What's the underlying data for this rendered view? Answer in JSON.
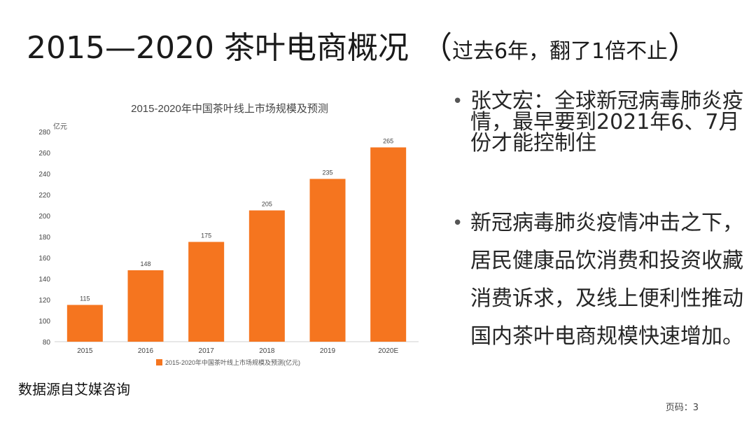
{
  "slide": {
    "title": "2015—2020 茶叶电商概况",
    "title_paren_open": "（",
    "title_sub": "过去6年，翻了1倍不止",
    "title_paren_close": "）",
    "bullets": [
      "张文宏：全球新冠病毒肺炎疫情，最早要到2021年6、7月份才能控制住",
      "新冠病毒肺炎疫情冲击之下，居民健康品饮消费和投资收藏消费诉求，及线上便利性推动国内茶叶电商规模快速增加。"
    ],
    "bullet_glyph": "•",
    "source": "数据源自艾媒咨询",
    "page_label": "页码：3"
  },
  "chart_data": {
    "type": "bar",
    "title": "2015-2020年中国茶叶线上市场规模及预测",
    "ylabel": "亿元",
    "categories": [
      "2015",
      "2016",
      "2017",
      "2018",
      "2019",
      "2020E"
    ],
    "series": [
      {
        "name": "2015-2020年中国茶叶线上市场规模及预测(亿元)",
        "values": [
          115,
          148,
          175,
          205,
          235,
          265
        ]
      }
    ],
    "ylim": [
      80,
      280
    ],
    "yticks": [
      80,
      100,
      120,
      140,
      160,
      180,
      200,
      220,
      240,
      260,
      280
    ],
    "grid": false,
    "legend": "bottom",
    "bar_color": "#f5751f"
  }
}
